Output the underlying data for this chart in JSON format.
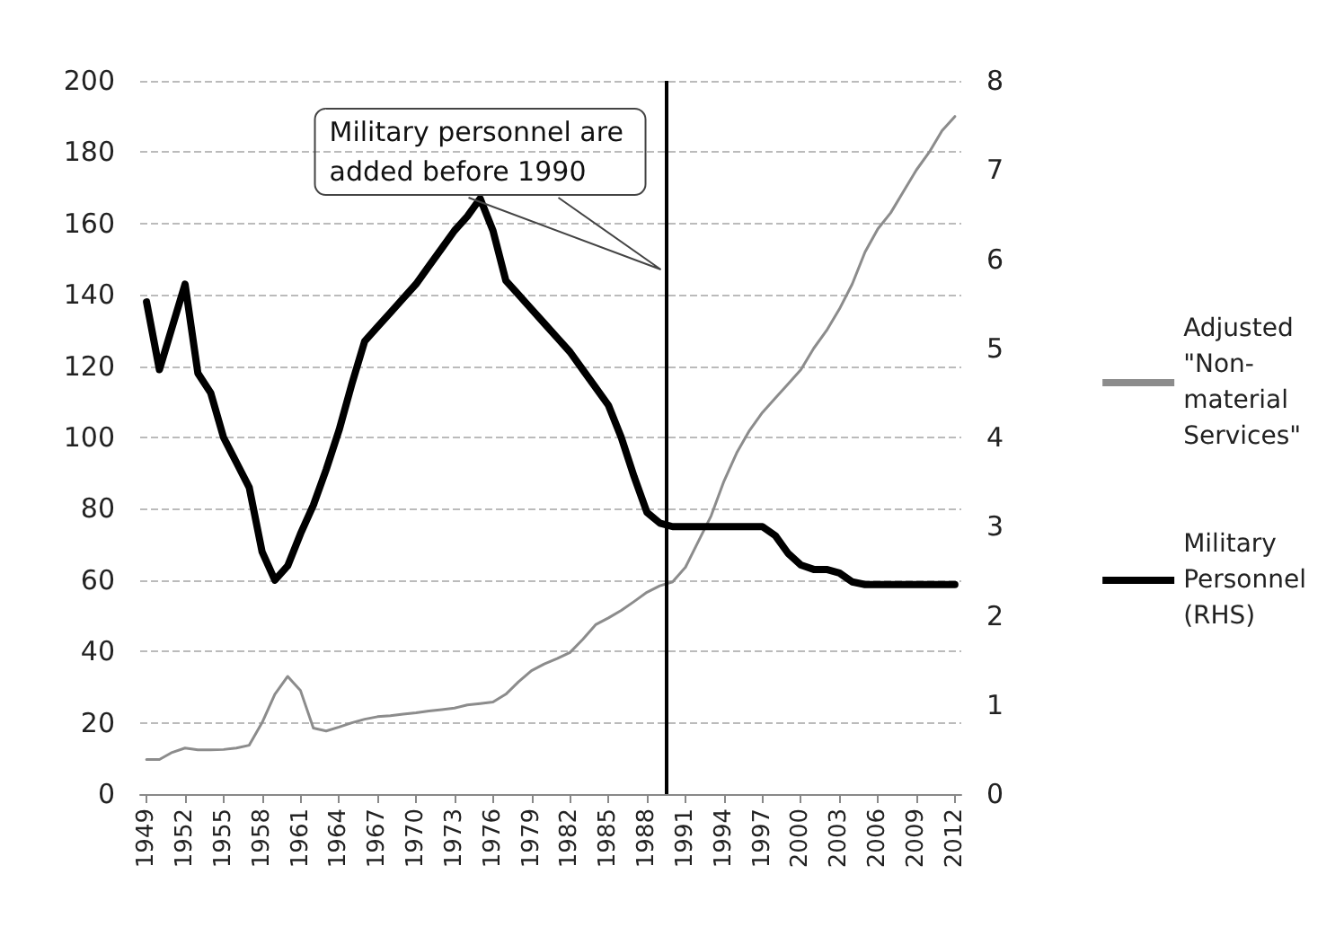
{
  "chart_data": {
    "type": "line",
    "x": [
      1949,
      1950,
      1951,
      1952,
      1953,
      1954,
      1955,
      1956,
      1957,
      1958,
      1959,
      1960,
      1961,
      1962,
      1963,
      1964,
      1965,
      1966,
      1967,
      1968,
      1969,
      1970,
      1971,
      1972,
      1973,
      1974,
      1975,
      1976,
      1977,
      1978,
      1979,
      1980,
      1981,
      1982,
      1983,
      1984,
      1985,
      1986,
      1987,
      1988,
      1989,
      1990,
      1991,
      1992,
      1993,
      1994,
      1995,
      1996,
      1997,
      1998,
      1999,
      2000,
      2001,
      2002,
      2003,
      2004,
      2005,
      2006,
      2007,
      2008,
      2009,
      2010,
      2011,
      2012
    ],
    "series": [
      {
        "name": "Adjusted \"Non-material Services\"",
        "color": "#8c8c8c",
        "values": [
          9.7,
          9.7,
          11.7,
          12.9,
          12.4,
          12.4,
          12.5,
          12.9,
          13.7,
          20,
          28,
          33,
          29,
          18.5,
          17.7,
          18.8,
          20,
          21,
          21.7,
          22,
          22.4,
          22.8,
          23.3,
          23.7,
          24.1,
          25,
          25.4,
          25.8,
          28,
          31.5,
          34.6,
          36.5,
          38,
          39.7,
          43.4,
          47.5,
          49.4,
          51.5,
          54,
          56.6,
          58.4,
          59.5,
          63.6,
          70.8,
          78,
          87.7,
          95.7,
          102,
          107,
          111,
          115,
          119,
          125,
          130,
          136,
          143,
          152,
          158.5,
          163,
          169,
          175,
          180,
          186,
          190
        ]
      },
      {
        "name": "Military Personnel (RHS)",
        "color": "#000000",
        "axis": "y2",
        "values": [
          5.52,
          4.76,
          5.24,
          5.72,
          4.72,
          4.5,
          4.0,
          3.72,
          3.44,
          2.72,
          2.4,
          2.56,
          2.92,
          3.24,
          3.64,
          4.08,
          4.6,
          5.08,
          5.24,
          5.4,
          5.56,
          5.72,
          5.92,
          6.12,
          6.32,
          6.48,
          6.68,
          6.32,
          5.76,
          5.6,
          5.44,
          5.28,
          5.12,
          4.96,
          4.76,
          4.56,
          4.36,
          4.0,
          3.56,
          3.16,
          3.04,
          3.0,
          3.0,
          3.0,
          3.0,
          3.0,
          3.0,
          3.0,
          3.0,
          2.9,
          2.7,
          2.57,
          2.52,
          2.52,
          2.48,
          2.38,
          2.35,
          2.35,
          2.35,
          2.35,
          2.35,
          2.35,
          2.35,
          2.35
        ]
      }
    ],
    "xlim": [
      1948.5,
      2012.5
    ],
    "xticks": [
      1949,
      1952,
      1955,
      1958,
      1961,
      1964,
      1967,
      1970,
      1973,
      1976,
      1979,
      1982,
      1985,
      1988,
      1991,
      1994,
      1997,
      2000,
      2003,
      2006,
      2009,
      2012
    ],
    "ylim": [
      0,
      200
    ],
    "yticks": [
      0,
      20,
      40,
      60,
      80,
      100,
      120,
      140,
      160,
      180,
      200
    ],
    "y2lim": [
      0,
      8
    ],
    "y2ticks": [
      0,
      1,
      2,
      3,
      4,
      5,
      6,
      7,
      8
    ],
    "ref_lines": [
      {
        "axis": "x",
        "value": 1989.5,
        "label": "Military personnel are added before 1990",
        "color": "#000000"
      }
    ],
    "grid": "y",
    "legend": "right",
    "marker": "none",
    "line_style": "solid"
  }
}
